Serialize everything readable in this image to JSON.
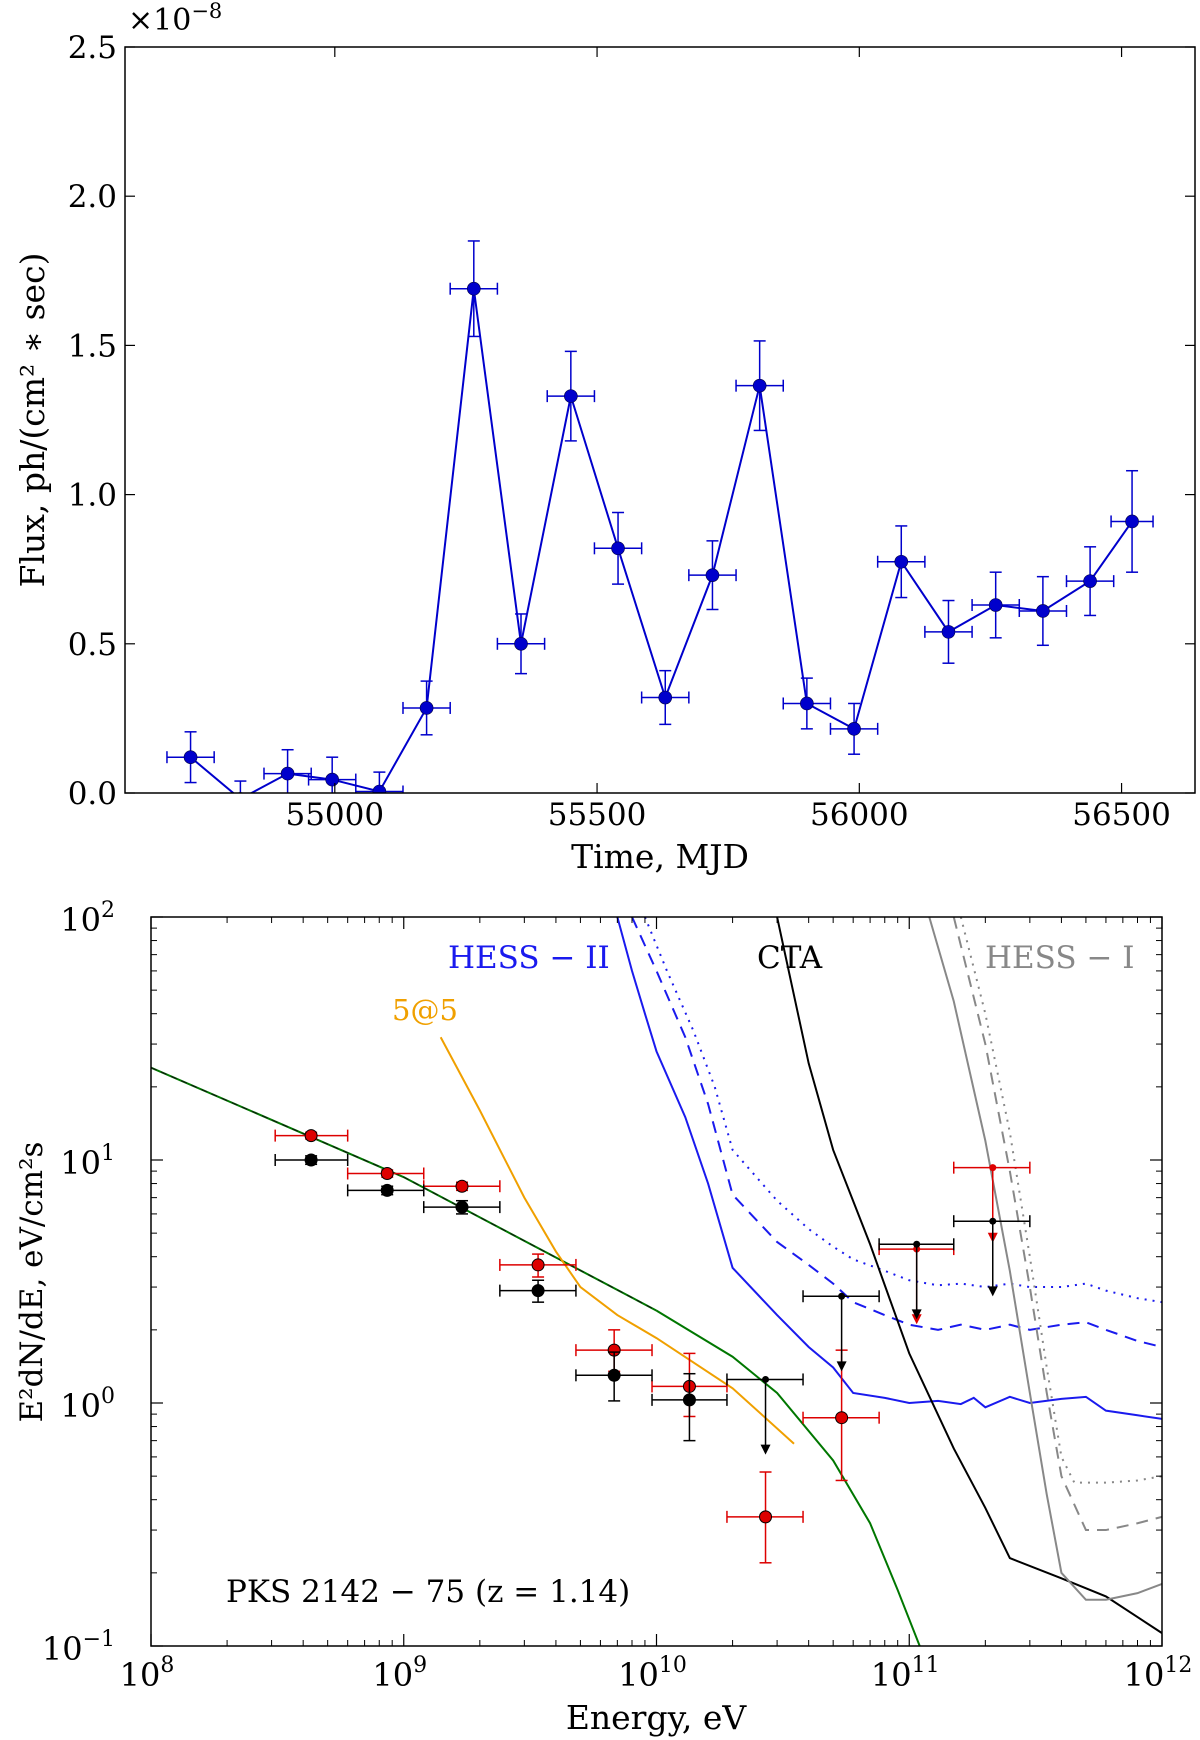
{
  "chart_data": [
    {
      "type": "line",
      "multiplier_label": "×10",
      "multiplier_exp": "−8",
      "xlabel": "Time,  MJD",
      "ylabel": "Flux,  ph/(cm² ∗ sec)",
      "xlim": [
        54600,
        56640
      ],
      "ylim": [
        0.0,
        2.5
      ],
      "xticks": [
        55000,
        55500,
        56000,
        56500
      ],
      "xtick_labels": [
        "55000",
        "55500",
        "56000",
        "56500"
      ],
      "yticks": [
        0.0,
        0.5,
        1.0,
        1.5,
        2.0,
        2.5
      ],
      "ytick_labels": [
        "0.0",
        "0.5",
        "1.0",
        "1.5",
        "2.0",
        "2.5"
      ],
      "line_color": "#0000cc",
      "series": [
        {
          "name": "flux",
          "x": [
            54725,
            54820,
            54910,
            54995,
            55085,
            55175,
            55265,
            55355,
            55450,
            55540,
            55630,
            55720,
            55810,
            55900,
            55990,
            56080,
            56170,
            56260,
            56350,
            56440,
            56520
          ],
          "y": [
            0.12,
            -0.02,
            0.065,
            0.045,
            0.005,
            0.285,
            1.69,
            0.5,
            1.33,
            0.82,
            0.32,
            0.73,
            1.365,
            0.3,
            0.215,
            0.775,
            0.54,
            0.63,
            0.61,
            0.71,
            0.91
          ],
          "xerr": [
            45,
            45,
            45,
            45,
            45,
            45,
            45,
            45,
            45,
            45,
            45,
            45,
            45,
            45,
            45,
            45,
            45,
            45,
            45,
            45,
            40
          ],
          "yerr": [
            0.085,
            0.06,
            0.08,
            0.075,
            0.065,
            0.09,
            0.16,
            0.1,
            0.15,
            0.12,
            0.09,
            0.115,
            0.15,
            0.085,
            0.085,
            0.12,
            0.105,
            0.11,
            0.115,
            0.115,
            0.17
          ]
        }
      ]
    },
    {
      "type": "scatter",
      "xlabel": "Energy,  eV",
      "ylabel": "E²dN/dE,  eV/cm²s",
      "xscale": "log",
      "yscale": "log",
      "xlim": [
        100000000.0,
        1000000000000.0
      ],
      "ylim": [
        0.1,
        100
      ],
      "xticks": [
        100000000.0,
        1000000000.0,
        10000000000.0,
        100000000000.0,
        1000000000000.0
      ],
      "xtick_labels": [
        {
          "base": "10",
          "exp": "8"
        },
        {
          "base": "10",
          "exp": "9"
        },
        {
          "base": "10",
          "exp": "10"
        },
        {
          "base": "10",
          "exp": "11"
        },
        {
          "base": "10",
          "exp": "12"
        }
      ],
      "yticks": [
        0.1,
        1,
        10,
        100
      ],
      "ytick_labels": [
        {
          "base": "10",
          "exp": "−1"
        },
        {
          "base": "10",
          "exp": "0"
        },
        {
          "base": "10",
          "exp": "1"
        },
        {
          "base": "10",
          "exp": "2"
        }
      ],
      "annotations": {
        "source": "PKS 2142 − 75 (z = 1.14)",
        "hess2": "HESS − II",
        "cta": "CTA",
        "hess1": "HESS − I",
        "s55": "5@5"
      },
      "colors": {
        "hess2": "#1a1aee",
        "cta": "#000000",
        "hess1": "#888888",
        "s55": "#f0a000",
        "model": "#007700",
        "red_points": "#dd0000",
        "black_points": "#000000"
      },
      "black_points": [
        {
          "e": 430000000.0,
          "v": 10.0,
          "elo": 310000000.0,
          "ehi": 600000000.0,
          "vlo": 9.6,
          "vhi": 10.4
        },
        {
          "e": 860000000.0,
          "v": 7.5,
          "elo": 600000000.0,
          "ehi": 1200000000.0,
          "vlo": 7.2,
          "vhi": 7.8
        },
        {
          "e": 1700000000.0,
          "v": 6.4,
          "elo": 1200000000.0,
          "ehi": 2400000000.0,
          "vlo": 6.0,
          "vhi": 6.8
        },
        {
          "e": 3400000000.0,
          "v": 2.9,
          "elo": 2400000000.0,
          "ehi": 4800000000.0,
          "vlo": 2.6,
          "vhi": 3.2
        },
        {
          "e": 6800000000.0,
          "v": 1.3,
          "elo": 4800000000.0,
          "ehi": 9600000000.0,
          "vlo": 1.02,
          "vhi": 1.62
        },
        {
          "e": 13500000000.0,
          "v": 1.03,
          "elo": 9600000000.0,
          "ehi": 19000000000.0,
          "vlo": 0.7,
          "vhi": 1.32
        },
        {
          "e": 27000000000.0,
          "v": 1.25,
          "elo": 19000000000.0,
          "ehi": 38000000000.0,
          "upper": true
        },
        {
          "e": 54000000000.0,
          "v": 2.75,
          "elo": 38000000000.0,
          "ehi": 76000000000.0,
          "upper": true
        },
        {
          "e": 107000000000.0,
          "v": 4.5,
          "elo": 76000000000.0,
          "ehi": 150000000000.0,
          "upper": true
        },
        {
          "e": 214000000000.0,
          "v": 5.6,
          "elo": 150000000000.0,
          "ehi": 300000000000.0,
          "upper": true
        }
      ],
      "red_points": [
        {
          "e": 430000000.0,
          "v": 12.6,
          "elo": 310000000.0,
          "ehi": 600000000.0,
          "vlo": 12.2,
          "vhi": 13.0
        },
        {
          "e": 860000000.0,
          "v": 8.8,
          "elo": 600000000.0,
          "ehi": 1200000000.0,
          "vlo": 8.5,
          "vhi": 9.1
        },
        {
          "e": 1700000000.0,
          "v": 7.8,
          "elo": 1200000000.0,
          "ehi": 2400000000.0,
          "vlo": 7.5,
          "vhi": 8.1
        },
        {
          "e": 3400000000.0,
          "v": 3.7,
          "elo": 2400000000.0,
          "ehi": 4800000000.0,
          "vlo": 3.3,
          "vhi": 4.1
        },
        {
          "e": 6800000000.0,
          "v": 1.65,
          "elo": 4800000000.0,
          "ehi": 9600000000.0,
          "vlo": 1.35,
          "vhi": 2.0
        },
        {
          "e": 13500000000.0,
          "v": 1.17,
          "elo": 9600000000.0,
          "ehi": 19000000000.0,
          "vlo": 0.88,
          "vhi": 1.6
        },
        {
          "e": 27000000000.0,
          "v": 0.34,
          "elo": 19000000000.0,
          "ehi": 38000000000.0,
          "vlo": 0.22,
          "vhi": 0.52
        },
        {
          "e": 54000000000.0,
          "v": 0.87,
          "elo": 38000000000.0,
          "ehi": 76000000000.0,
          "vlo": 0.48,
          "vhi": 1.65
        },
        {
          "e": 107000000000.0,
          "v": 4.3,
          "elo": 76000000000.0,
          "ehi": 150000000000.0,
          "upper": true
        },
        {
          "e": 214000000000.0,
          "v": 9.3,
          "elo": 150000000000.0,
          "ehi": 300000000000.0,
          "upper": true
        }
      ],
      "curves": {
        "model_powerlaw": [
          [
            100000000.0,
            24
          ],
          [
            1000000000.0,
            8.5
          ],
          [
            10000000000.0,
            2.4
          ]
        ],
        "model_cutoff": [
          [
            10000000000.0,
            2.4
          ],
          [
            20000000000.0,
            1.55
          ],
          [
            30000000000.0,
            1.1
          ],
          [
            50000000000.0,
            0.58
          ],
          [
            70000000000.0,
            0.32
          ],
          [
            90000000000.0,
            0.17
          ],
          [
            110000000000.0,
            0.1
          ]
        ],
        "s55": [
          [
            1400000000.0,
            32
          ],
          [
            2000000000.0,
            16
          ],
          [
            3000000000.0,
            7
          ],
          [
            4000000000.0,
            4.2
          ],
          [
            5000000000.0,
            3.0
          ],
          [
            7000000000.0,
            2.3
          ],
          [
            10000000000.0,
            1.85
          ],
          [
            20000000000.0,
            1.15
          ],
          [
            35000000000.0,
            0.68
          ]
        ],
        "hess2_solid": [
          [
            7000000000.0,
            100
          ],
          [
            8000000000.0,
            60
          ],
          [
            9000000000.0,
            40
          ],
          [
            10000000000.0,
            28
          ],
          [
            13000000000.0,
            15
          ],
          [
            16000000000.0,
            8
          ],
          [
            20000000000.0,
            3.6
          ],
          [
            30000000000.0,
            2.3
          ],
          [
            40000000000.0,
            1.7
          ],
          [
            50000000000.0,
            1.4
          ],
          [
            60000000000.0,
            1.1
          ],
          [
            80000000000.0,
            1.05
          ],
          [
            100000000000.0,
            1.0
          ],
          [
            130000000000.0,
            1.02
          ],
          [
            160000000000.0,
            0.99
          ],
          [
            180000000000.0,
            1.05
          ],
          [
            200000000000.0,
            0.96
          ],
          [
            250000000000.0,
            1.06
          ],
          [
            300000000000.0,
            1.0
          ],
          [
            400000000000.0,
            1.04
          ],
          [
            500000000000.0,
            1.06
          ],
          [
            600000000000.0,
            0.93
          ],
          [
            800000000000.0,
            0.89
          ],
          [
            1000000000000.0,
            0.86
          ]
        ],
        "hess2_dashed": [
          [
            8000000000.0,
            100
          ],
          [
            10000000000.0,
            60
          ],
          [
            13000000000.0,
            32
          ],
          [
            16000000000.0,
            17
          ],
          [
            20000000000.0,
            7.2
          ],
          [
            30000000000.0,
            4.6
          ],
          [
            40000000000.0,
            3.7
          ],
          [
            50000000000.0,
            3.1
          ],
          [
            60000000000.0,
            2.6
          ],
          [
            80000000000.0,
            2.3
          ],
          [
            100000000000.0,
            2.1
          ],
          [
            130000000000.0,
            2.0
          ],
          [
            160000000000.0,
            2.1
          ],
          [
            200000000000.0,
            2.0
          ],
          [
            250000000000.0,
            2.1
          ],
          [
            300000000000.0,
            2.0
          ],
          [
            400000000000.0,
            2.1
          ],
          [
            500000000000.0,
            2.15
          ],
          [
            600000000000.0,
            2.0
          ],
          [
            800000000000.0,
            1.8
          ],
          [
            1000000000000.0,
            1.7
          ]
        ],
        "hess2_dotted": [
          [
            9000000000.0,
            100
          ],
          [
            11000000000.0,
            60
          ],
          [
            14000000000.0,
            34
          ],
          [
            17000000000.0,
            20
          ],
          [
            20000000000.0,
            11
          ],
          [
            30000000000.0,
            6.8
          ],
          [
            40000000000.0,
            5.2
          ],
          [
            50000000000.0,
            4.4
          ],
          [
            60000000000.0,
            3.9
          ],
          [
            80000000000.0,
            3.5
          ],
          [
            100000000000.0,
            3.2
          ],
          [
            130000000000.0,
            3.05
          ],
          [
            160000000000.0,
            3.1
          ],
          [
            200000000000.0,
            3.0
          ],
          [
            250000000000.0,
            3.1
          ],
          [
            300000000000.0,
            3.0
          ],
          [
            400000000000.0,
            3.0
          ],
          [
            500000000000.0,
            3.1
          ],
          [
            600000000000.0,
            2.9
          ],
          [
            800000000000.0,
            2.7
          ],
          [
            1000000000000.0,
            2.6
          ]
        ],
        "cta": [
          [
            30000000000.0,
            100
          ],
          [
            40000000000.0,
            25
          ],
          [
            50000000000.0,
            11
          ],
          [
            70000000000.0,
            4.5
          ],
          [
            100000000000.0,
            1.6
          ],
          [
            150000000000.0,
            0.65
          ],
          [
            200000000000.0,
            0.37
          ],
          [
            250000000000.0,
            0.23
          ],
          [
            400000000000.0,
            0.19
          ],
          [
            600000000000.0,
            0.16
          ],
          [
            1000000000000.0,
            0.113
          ]
        ],
        "hess1_solid": [
          [
            120000000000.0,
            100
          ],
          [
            150000000000.0,
            45
          ],
          [
            200000000000.0,
            12
          ],
          [
            250000000000.0,
            3.5
          ],
          [
            300000000000.0,
            1.1
          ],
          [
            350000000000.0,
            0.42
          ],
          [
            400000000000.0,
            0.2
          ],
          [
            500000000000.0,
            0.155
          ],
          [
            600000000000.0,
            0.155
          ],
          [
            800000000000.0,
            0.165
          ],
          [
            1000000000000.0,
            0.18
          ]
        ],
        "hess1_dashed": [
          [
            150000000000.0,
            100
          ],
          [
            200000000000.0,
            30
          ],
          [
            250000000000.0,
            9
          ],
          [
            300000000000.0,
            3
          ],
          [
            350000000000.0,
            1.1
          ],
          [
            400000000000.0,
            0.5
          ],
          [
            500000000000.0,
            0.3
          ],
          [
            600000000000.0,
            0.3
          ],
          [
            800000000000.0,
            0.32
          ],
          [
            1000000000000.0,
            0.34
          ]
        ],
        "hess1_dotted": [
          [
            160000000000.0,
            100
          ],
          [
            200000000000.0,
            40
          ],
          [
            250000000000.0,
            13
          ],
          [
            300000000000.0,
            4
          ],
          [
            350000000000.0,
            1.4
          ],
          [
            400000000000.0,
            0.6
          ],
          [
            450000000000.0,
            0.47
          ],
          [
            600000000000.0,
            0.47
          ],
          [
            800000000000.0,
            0.48
          ],
          [
            1000000000000.0,
            0.5
          ]
        ]
      }
    }
  ]
}
